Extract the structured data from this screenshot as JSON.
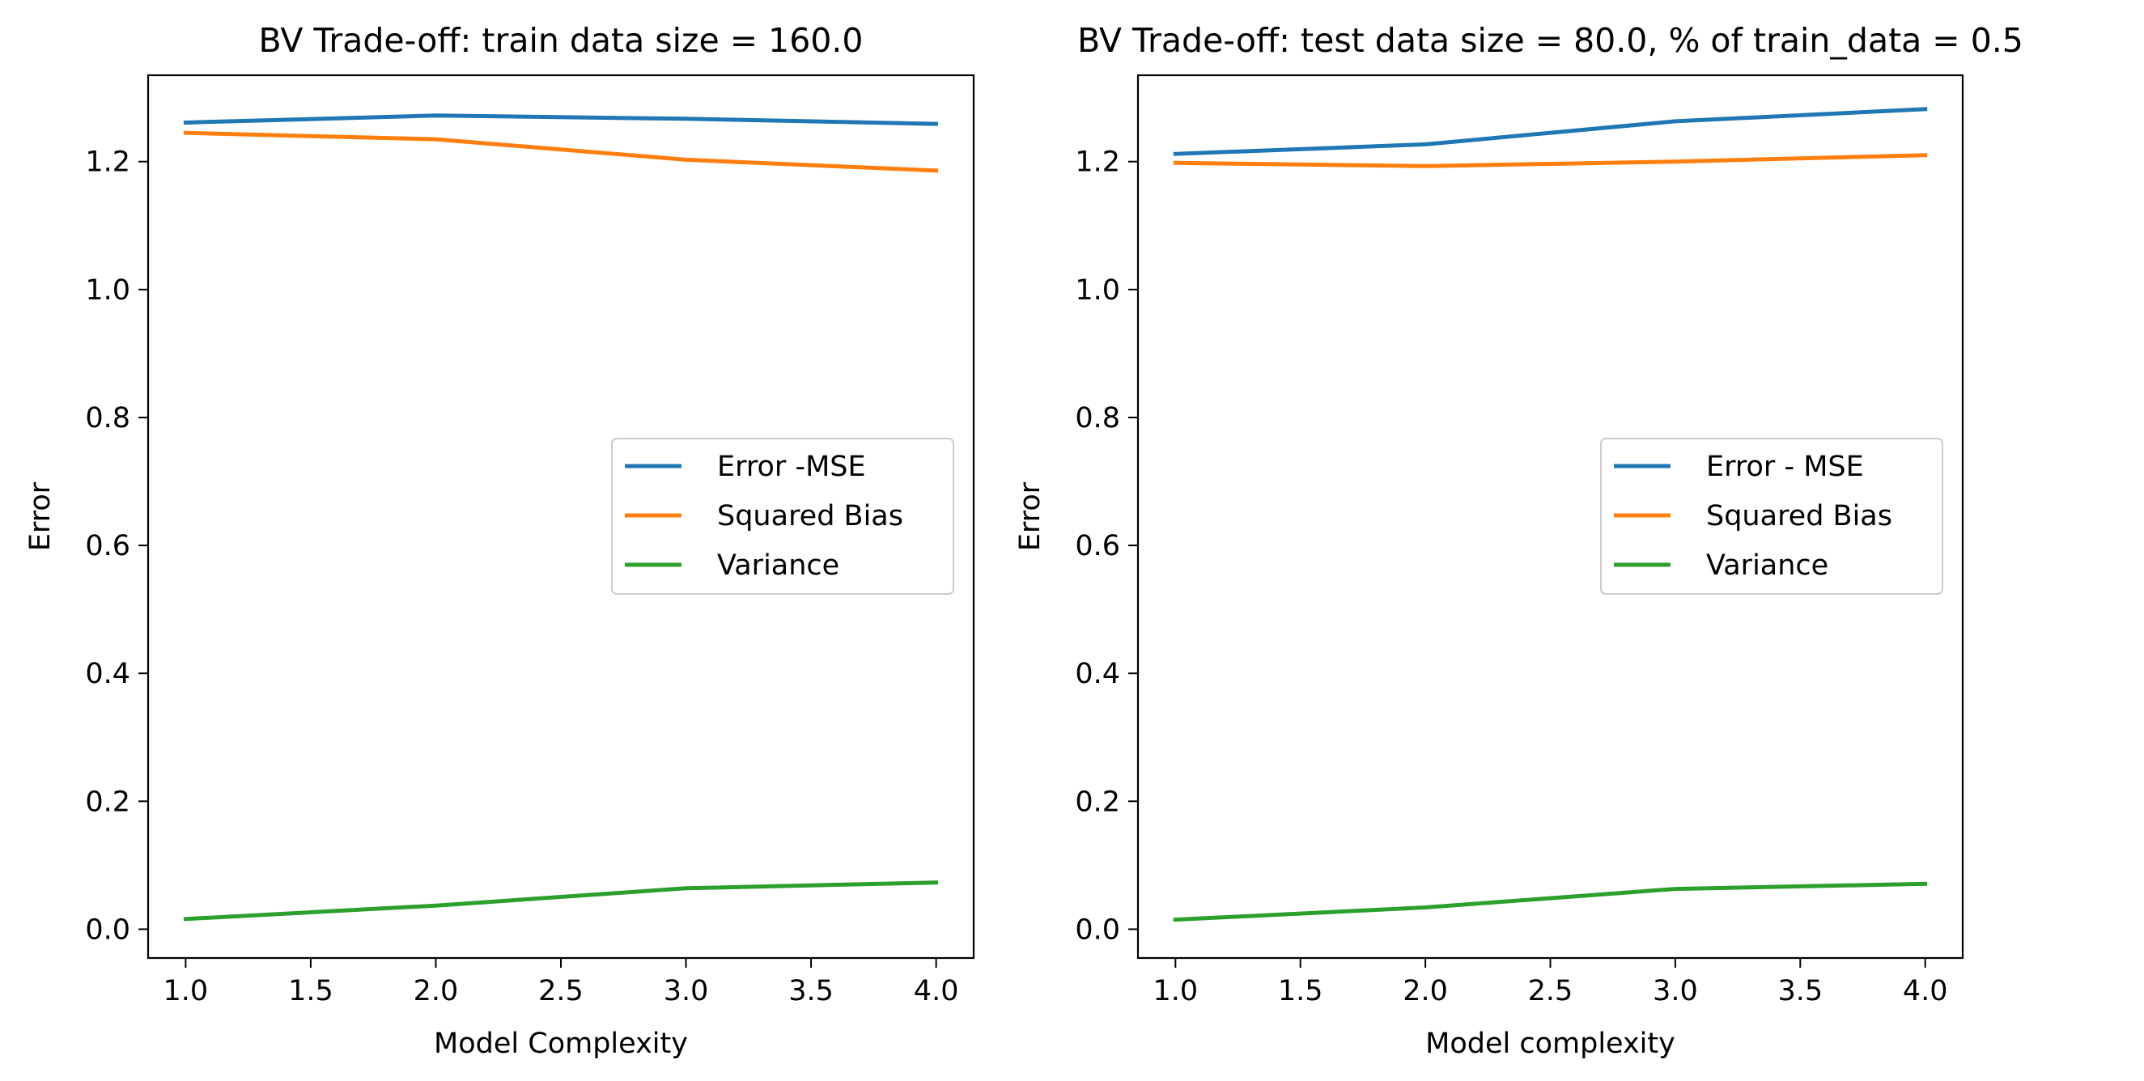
{
  "chart_data": [
    {
      "type": "line",
      "title": "BV Trade-off: train data size = 160.0",
      "xlabel": "Model Complexity",
      "ylabel": "Error",
      "x": [
        1.0,
        2.0,
        3.0,
        4.0
      ],
      "xlim": [
        0.85,
        4.15
      ],
      "ylim": [
        -0.045,
        1.335
      ],
      "xticks": [
        "1.0",
        "1.5",
        "2.0",
        "2.5",
        "3.0",
        "3.5",
        "4.0"
      ],
      "yticks": [
        "0.0",
        "0.2",
        "0.4",
        "0.6",
        "0.8",
        "1.0",
        "1.2"
      ],
      "legend_position": "center-right",
      "grid": false,
      "series": [
        {
          "name": "Error -MSE",
          "color": "#1f77b4",
          "values": [
            1.261,
            1.272,
            1.267,
            1.259
          ]
        },
        {
          "name": "Squared Bias",
          "color": "#ff7f0e",
          "values": [
            1.245,
            1.235,
            1.203,
            1.186
          ]
        },
        {
          "name": "Variance",
          "color": "#2ca02c",
          "values": [
            0.016,
            0.037,
            0.064,
            0.073
          ]
        }
      ]
    },
    {
      "type": "line",
      "title": "BV Trade-off: test data size = 80.0, % of train_data = 0.5",
      "xlabel": "Model complexity",
      "ylabel": "Error",
      "x": [
        1.0,
        2.0,
        3.0,
        4.0
      ],
      "xlim": [
        0.85,
        4.15
      ],
      "ylim": [
        -0.045,
        1.335
      ],
      "xticks": [
        "1.0",
        "1.5",
        "2.0",
        "2.5",
        "3.0",
        "3.5",
        "4.0"
      ],
      "yticks": [
        "0.0",
        "0.2",
        "0.4",
        "0.6",
        "0.8",
        "1.0",
        "1.2"
      ],
      "legend_position": "center-right",
      "grid": false,
      "series": [
        {
          "name": "Error - MSE",
          "color": "#1f77b4",
          "values": [
            1.212,
            1.227,
            1.263,
            1.282
          ]
        },
        {
          "name": "Squared Bias",
          "color": "#ff7f0e",
          "values": [
            1.198,
            1.193,
            1.2,
            1.21
          ]
        },
        {
          "name": "Variance",
          "color": "#2ca02c",
          "values": [
            0.015,
            0.034,
            0.063,
            0.071
          ]
        }
      ]
    }
  ]
}
